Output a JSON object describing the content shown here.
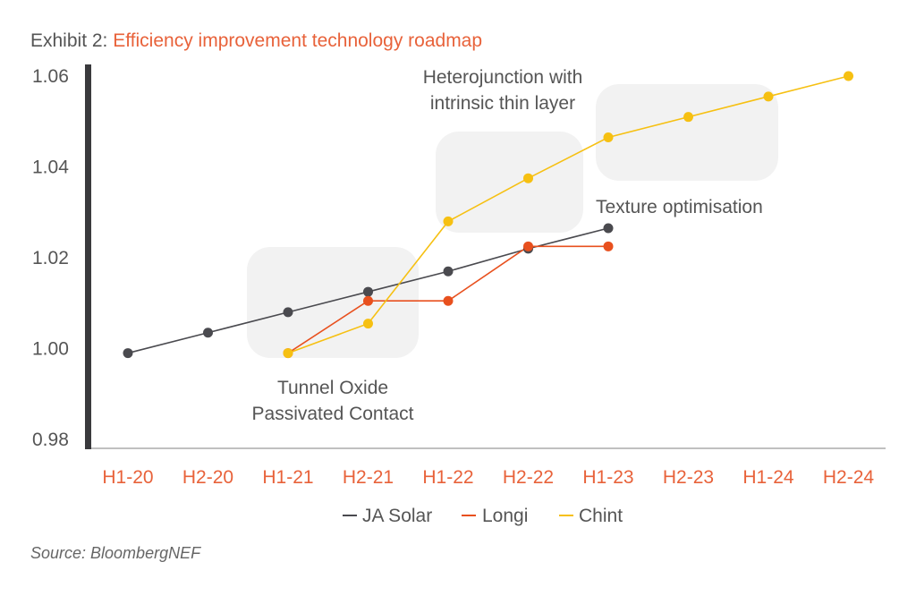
{
  "title": {
    "lead": "Exhibit 2: ",
    "main": "Efficiency improvement technology roadmap"
  },
  "source": "Source: BloombergNEF",
  "colors": {
    "ja_solar": "#4a4a4f",
    "longi": "#e8501e",
    "chint": "#f6c012",
    "accent": "#e8623a",
    "box": "#f2f2f2"
  },
  "chart_data": {
    "type": "line",
    "categories": [
      "H1-20",
      "H2-20",
      "H1-21",
      "H2-21",
      "H1-22",
      "H2-22",
      "H1-23",
      "H2-23",
      "H1-24",
      "H2-24"
    ],
    "ylim": [
      0.98,
      1.06
    ],
    "yticks": [
      "0.98",
      "1.00",
      "1.02",
      "1.04",
      "1.06"
    ],
    "ytick_values": [
      0.98,
      1.0,
      1.02,
      1.04,
      1.06
    ],
    "series": [
      {
        "name": "JA Solar",
        "color": "#4a4a4f",
        "values": [
          0.999,
          1.0035,
          1.008,
          1.0125,
          1.017,
          1.022,
          1.0265,
          null,
          null,
          null
        ]
      },
      {
        "name": "Longi",
        "color": "#e8501e",
        "values": [
          null,
          null,
          0.999,
          1.0105,
          1.0105,
          1.0225,
          1.0225,
          null,
          null,
          null
        ]
      },
      {
        "name": "Chint",
        "color": "#f6c012",
        "values": [
          null,
          null,
          0.999,
          1.0055,
          1.028,
          1.0375,
          1.0465,
          1.051,
          1.0555,
          1.06
        ]
      }
    ],
    "annotations": [
      {
        "lines": [
          "Tunnel  Oxide",
          "Passivated Contact"
        ]
      },
      {
        "lines": [
          "Heterojunction with",
          "intrinsic thin layer"
        ]
      },
      {
        "lines": [
          "Texture optimisation"
        ]
      }
    ],
    "legend": "bottom"
  }
}
